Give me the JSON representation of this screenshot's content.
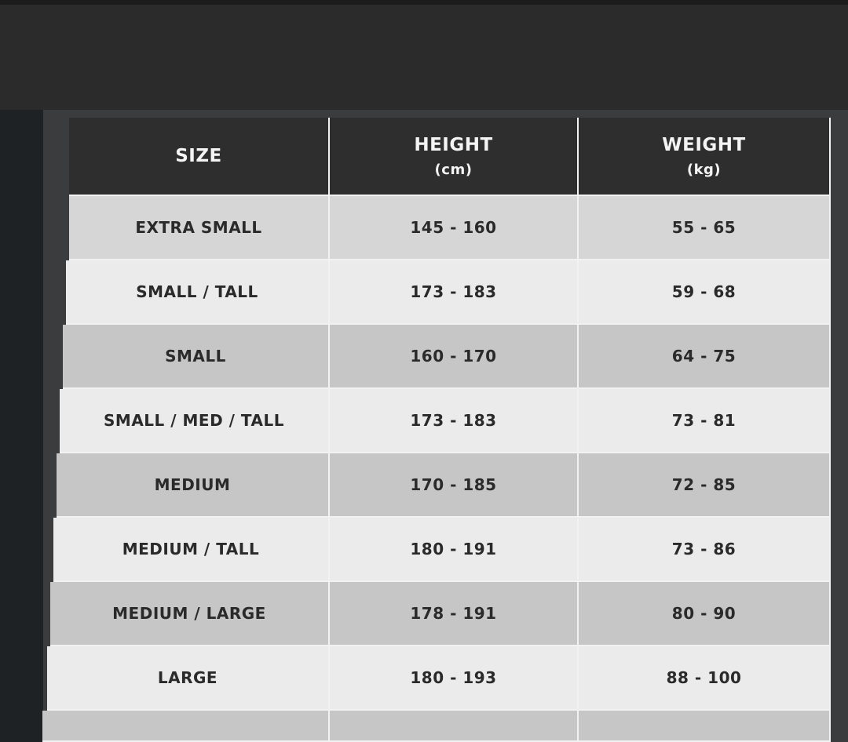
{
  "table": {
    "header": {
      "size": "SIZE",
      "height": "HEIGHT",
      "height_unit": "(cm)",
      "weight": "WEIGHT",
      "weight_unit": "(kg)"
    },
    "rows": [
      [
        "EXTRA SMALL",
        "145 - 160",
        "55 - 65"
      ],
      [
        "SMALL / TALL",
        "173 - 183",
        "59 - 68"
      ],
      [
        "SMALL",
        "160 - 170",
        "64 - 75"
      ],
      [
        "SMALL / MED / TALL",
        "173 - 183",
        "73 - 81"
      ],
      [
        "MEDIUM",
        "170 - 185",
        "72 - 85"
      ],
      [
        "MEDIUM / TALL",
        "180 - 191",
        "73 - 86"
      ],
      [
        "MEDIUM / LARGE",
        "178 - 191",
        "80 - 90"
      ],
      [
        "LARGE",
        "180 - 193",
        "88 - 100"
      ]
    ]
  }
}
